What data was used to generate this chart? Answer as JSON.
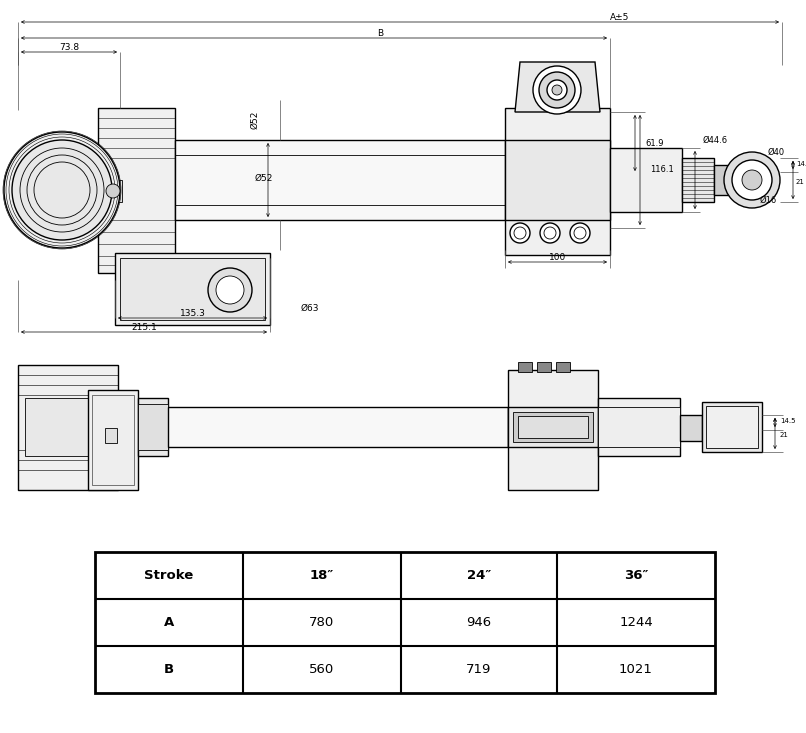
{
  "bg_color": "#ffffff",
  "line_color": "#000000",
  "dim_color": "#000000",
  "gray_light": "#e8e8e8",
  "gray_med": "#cccccc",
  "gray_dark": "#aaaaaa",
  "table_header": [
    "Stroke",
    "18″",
    "24″",
    "36″"
  ],
  "table_rows": [
    [
      "A",
      "780",
      "946",
      "1244"
    ],
    [
      "B",
      "560",
      "719",
      "1021"
    ]
  ],
  "dims": {
    "A5": "A±5",
    "B": "B",
    "d52": "Ø52",
    "d63": "Ø63",
    "d44_6": "Ø44.6",
    "d40": "Ø40",
    "d16": "Ø16",
    "v738": "73.8",
    "v1353": "135.3",
    "v2151": "215.1",
    "v100": "100",
    "v619": "61.9",
    "v1161": "116.1",
    "v145": "14.5",
    "v21": "21"
  }
}
